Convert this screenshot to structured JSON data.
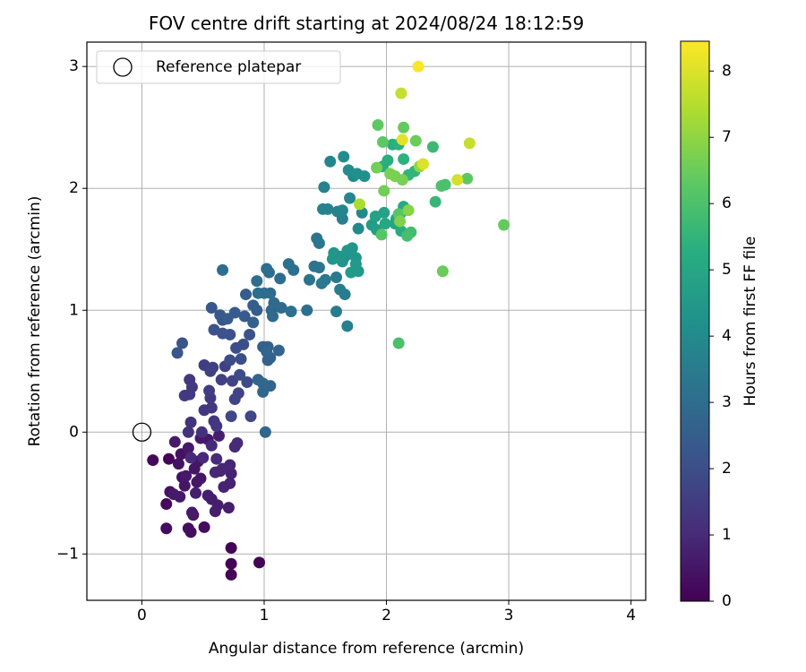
{
  "chart_data": {
    "type": "scatter",
    "title": "FOV centre drift starting at 2024/08/24 18:12:59",
    "xlabel": "Angular distance from reference (arcmin)",
    "ylabel": "Rotation from reference (arcmin)",
    "xlim": [
      -0.45,
      4.12
    ],
    "ylim": [
      -1.38,
      3.2
    ],
    "xticks": [
      "0",
      "1",
      "2",
      "3",
      "4"
    ],
    "yticks": [
      "−1",
      "0",
      "1",
      "2",
      "3"
    ],
    "grid": true,
    "legend": {
      "position": "top-left",
      "label": "Reference platepar"
    },
    "reference_point": {
      "x": 0,
      "y": 0,
      "marker": "open-circle"
    },
    "colorbar": {
      "label": "Hours from first FF file",
      "range": [
        0,
        8.45
      ],
      "ticks": [
        "0",
        "1",
        "2",
        "3",
        "4",
        "5",
        "6",
        "7",
        "8"
      ],
      "colormap": "viridis"
    },
    "series": [
      {
        "points": [
          [
            0.73,
            -0.95,
            0.05
          ],
          [
            0.73,
            -1.08,
            0.05
          ],
          [
            0.73,
            -1.17,
            0.05
          ],
          [
            0.96,
            -1.07,
            0.08
          ],
          [
            0.22,
            -0.22,
            0.1
          ],
          [
            0.09,
            -0.23,
            0.2
          ],
          [
            0.2,
            -0.59,
            0.2
          ],
          [
            0.4,
            -0.82,
            0.3
          ],
          [
            0.38,
            -0.79,
            0.3
          ],
          [
            0.2,
            -0.79,
            0.3
          ],
          [
            0.51,
            -0.78,
            0.3
          ],
          [
            0.33,
            -0.37,
            0.4
          ],
          [
            0.23,
            -0.49,
            0.4
          ],
          [
            0.3,
            -0.26,
            0.4
          ],
          [
            0.32,
            -0.18,
            0.4
          ],
          [
            0.35,
            -0.44,
            0.5
          ],
          [
            0.45,
            -0.41,
            0.5
          ],
          [
            0.43,
            -0.3,
            0.5
          ],
          [
            0.48,
            -0.38,
            0.5
          ],
          [
            0.46,
            -0.24,
            0.5
          ],
          [
            0.27,
            -0.08,
            0.6
          ],
          [
            0.38,
            -0.13,
            0.6
          ],
          [
            0.48,
            -0.05,
            0.6
          ],
          [
            0.54,
            -0.06,
            0.6
          ],
          [
            0.63,
            -0.03,
            0.7
          ],
          [
            0.41,
            -0.66,
            0.6
          ],
          [
            0.42,
            -0.68,
            0.6
          ],
          [
            0.6,
            -0.65,
            0.7
          ],
          [
            0.62,
            -0.6,
            0.7
          ],
          [
            0.71,
            -0.62,
            0.7
          ],
          [
            0.57,
            -0.55,
            0.7
          ],
          [
            0.54,
            -0.52,
            0.7
          ],
          [
            0.44,
            -0.5,
            0.7
          ],
          [
            0.26,
            -0.51,
            0.6
          ],
          [
            0.31,
            -0.53,
            0.6
          ],
          [
            0.36,
            -0.36,
            0.6
          ],
          [
            0.67,
            -0.45,
            0.8
          ],
          [
            0.72,
            -0.42,
            0.8
          ],
          [
            0.73,
            -0.34,
            0.8
          ],
          [
            0.64,
            -0.32,
            0.8
          ],
          [
            0.6,
            -0.33,
            0.9
          ],
          [
            0.66,
            -0.3,
            0.9
          ],
          [
            0.72,
            -0.27,
            0.9
          ],
          [
            0.76,
            -0.12,
            1.0
          ],
          [
            0.78,
            -0.09,
            1.0
          ],
          [
            0.57,
            -0.11,
            1.0
          ],
          [
            0.61,
            -0.22,
            1.0
          ],
          [
            0.5,
            -0.21,
            1.0
          ],
          [
            0.4,
            -0.21,
            1.0
          ],
          [
            0.38,
            0.0,
            1.2
          ],
          [
            0.4,
            0.08,
            1.2
          ],
          [
            0.49,
            0.0,
            1.2
          ],
          [
            0.59,
            0.09,
            1.3
          ],
          [
            0.61,
            0.05,
            1.3
          ],
          [
            0.51,
            0.18,
            1.3
          ],
          [
            0.57,
            0.2,
            1.3
          ],
          [
            0.56,
            0.28,
            1.4
          ],
          [
            0.35,
            0.3,
            1.4
          ],
          [
            0.39,
            0.31,
            1.4
          ],
          [
            0.39,
            0.43,
            1.4
          ],
          [
            0.41,
            0.37,
            1.4
          ],
          [
            0.55,
            0.34,
            1.5
          ],
          [
            0.51,
            0.55,
            1.5
          ],
          [
            0.58,
            0.53,
            1.6
          ],
          [
            0.56,
            0.5,
            1.6
          ],
          [
            0.68,
            0.54,
            1.6
          ],
          [
            0.65,
            0.43,
            1.6
          ],
          [
            0.74,
            0.42,
            1.7
          ],
          [
            0.79,
            0.32,
            1.7
          ],
          [
            0.76,
            0.27,
            1.7
          ],
          [
            0.89,
            0.13,
            1.8
          ],
          [
            0.73,
            0.13,
            1.8
          ],
          [
            0.86,
            0.41,
            1.9
          ],
          [
            0.8,
            0.47,
            1.9
          ],
          [
            0.72,
            0.59,
            1.9
          ],
          [
            0.81,
            0.6,
            2.0
          ],
          [
            0.77,
            0.69,
            2.0
          ],
          [
            0.83,
            0.72,
            2.0
          ],
          [
            0.88,
            0.8,
            2.1
          ],
          [
            0.72,
            0.8,
            2.1
          ],
          [
            0.66,
            0.81,
            2.1
          ],
          [
            0.59,
            0.84,
            2.1
          ],
          [
            0.33,
            0.73,
            2.2
          ],
          [
            0.29,
            0.65,
            2.2
          ],
          [
            0.57,
            1.02,
            2.3
          ],
          [
            0.64,
            0.96,
            2.3
          ],
          [
            0.66,
            0.92,
            2.3
          ],
          [
            0.7,
            0.93,
            2.4
          ],
          [
            0.76,
            0.98,
            2.4
          ],
          [
            0.84,
            0.95,
            2.4
          ],
          [
            0.85,
            1.13,
            2.5
          ],
          [
            0.91,
            1.04,
            2.5
          ],
          [
            0.94,
            1.0,
            2.5
          ],
          [
            0.91,
            0.9,
            2.6
          ],
          [
            0.99,
            0.7,
            2.6
          ],
          [
            1.03,
            0.7,
            2.6
          ],
          [
            1.05,
            0.61,
            2.6
          ],
          [
            1.03,
            0.59,
            2.6
          ],
          [
            1.02,
            0.66,
            2.7
          ],
          [
            1.12,
            0.67,
            2.7
          ],
          [
            1.05,
            0.38,
            2.7
          ],
          [
            0.95,
            0.43,
            2.7
          ],
          [
            0.99,
            0.4,
            2.8
          ],
          [
            0.99,
            0.33,
            2.8
          ],
          [
            1.01,
            0.0,
            2.8
          ],
          [
            1.06,
            1.0,
            2.8
          ],
          [
            1.07,
            0.95,
            2.9
          ],
          [
            1.08,
            1.06,
            2.9
          ],
          [
            1.14,
            1.02,
            2.9
          ],
          [
            1.05,
            1.14,
            2.9
          ],
          [
            1.0,
            1.14,
            3.0
          ],
          [
            1.02,
            1.34,
            3.0
          ],
          [
            1.13,
            1.26,
            3.0
          ],
          [
            1.04,
            1.31,
            3.0
          ],
          [
            0.94,
            1.24,
            3.0
          ],
          [
            0.95,
            1.14,
            3.0
          ],
          [
            0.66,
            1.33,
            3.0
          ],
          [
            1.2,
            1.38,
            3.1
          ],
          [
            1.24,
            1.33,
            3.1
          ],
          [
            1.22,
            0.99,
            3.1
          ],
          [
            1.35,
            1.0,
            3.1
          ],
          [
            1.37,
            1.25,
            3.2
          ],
          [
            1.41,
            1.36,
            3.2
          ],
          [
            1.45,
            1.35,
            3.3
          ],
          [
            1.45,
            1.55,
            3.3
          ],
          [
            1.43,
            1.59,
            3.3
          ],
          [
            1.5,
            1.25,
            3.4
          ],
          [
            1.47,
            1.22,
            3.4
          ],
          [
            1.59,
            1.27,
            3.4
          ],
          [
            1.62,
            1.17,
            3.5
          ],
          [
            1.66,
            1.13,
            3.5
          ],
          [
            1.59,
            0.99,
            3.5
          ],
          [
            1.68,
            0.87,
            3.6
          ],
          [
            1.64,
            1.75,
            3.6
          ],
          [
            1.6,
            1.81,
            3.7
          ],
          [
            1.52,
            1.83,
            3.7
          ],
          [
            1.48,
            1.83,
            3.7
          ],
          [
            1.49,
            2.01,
            3.7
          ],
          [
            1.54,
            2.22,
            3.8
          ],
          [
            1.64,
            1.82,
            3.8
          ],
          [
            1.7,
            1.92,
            3.9
          ],
          [
            1.8,
            1.8,
            4.0
          ],
          [
            1.77,
            1.67,
            4.0
          ],
          [
            1.73,
            2.1,
            4.0
          ],
          [
            1.65,
            2.26,
            4.1
          ],
          [
            1.69,
            2.15,
            4.1
          ],
          [
            1.76,
            2.12,
            4.2
          ],
          [
            1.82,
            2.1,
            4.2
          ],
          [
            1.66,
            1.44,
            4.3
          ],
          [
            1.64,
            1.4,
            4.3
          ],
          [
            1.75,
            1.43,
            4.4
          ],
          [
            1.72,
            1.51,
            4.4
          ],
          [
            1.68,
            1.49,
            4.4
          ],
          [
            1.62,
            1.44,
            4.4
          ],
          [
            1.57,
            1.47,
            4.4
          ],
          [
            1.56,
            1.42,
            4.4
          ],
          [
            1.71,
            1.31,
            4.5
          ],
          [
            1.77,
            1.32,
            4.5
          ],
          [
            1.75,
            1.38,
            4.5
          ],
          [
            1.88,
            1.7,
            4.6
          ],
          [
            1.92,
            1.66,
            4.7
          ],
          [
            1.91,
            1.77,
            4.8
          ],
          [
            1.98,
            1.8,
            4.8
          ],
          [
            2.07,
            1.71,
            4.9
          ],
          [
            2.08,
            1.75,
            5.0
          ],
          [
            1.99,
            1.71,
            5.0
          ],
          [
            2.12,
            1.8,
            5.1
          ],
          [
            2.14,
            1.85,
            5.1
          ],
          [
            2.12,
            1.65,
            5.2
          ],
          [
            1.97,
            2.18,
            5.3
          ],
          [
            2.01,
            2.23,
            5.3
          ],
          [
            2.05,
            2.36,
            5.3
          ],
          [
            2.1,
            2.36,
            5.4
          ],
          [
            2.14,
            2.24,
            5.4
          ],
          [
            2.18,
            2.11,
            5.5
          ],
          [
            2.23,
            2.14,
            5.5
          ],
          [
            2.4,
            1.89,
            5.6
          ],
          [
            2.38,
            2.34,
            5.7
          ],
          [
            2.2,
            1.64,
            5.8
          ],
          [
            2.17,
            1.61,
            5.9
          ],
          [
            2.1,
            0.73,
            6.0
          ],
          [
            2.45,
            2.02,
            6.0
          ],
          [
            2.48,
            2.03,
            6.0
          ],
          [
            2.66,
            2.08,
            6.3
          ],
          [
            1.96,
            1.62,
            6.2
          ],
          [
            2.1,
            1.79,
            6.2
          ],
          [
            1.93,
            2.52,
            6.3
          ],
          [
            1.97,
            2.38,
            6.3
          ],
          [
            2.14,
            2.5,
            6.4
          ],
          [
            2.24,
            2.39,
            6.5
          ],
          [
            2.96,
            1.7,
            6.4
          ],
          [
            2.46,
            1.32,
            6.5
          ],
          [
            1.92,
            2.17,
            6.6
          ],
          [
            1.98,
            1.98,
            6.6
          ],
          [
            2.03,
            2.12,
            6.7
          ],
          [
            2.07,
            2.1,
            6.7
          ],
          [
            2.13,
            2.07,
            6.7
          ],
          [
            2.11,
            1.73,
            6.8
          ],
          [
            2.18,
            1.82,
            6.9
          ],
          [
            2.27,
            2.18,
            7.0
          ],
          [
            1.78,
            1.87,
            7.4
          ],
          [
            2.12,
            2.78,
            7.7
          ],
          [
            2.68,
            2.37,
            7.7
          ],
          [
            2.58,
            2.07,
            7.9
          ],
          [
            2.3,
            2.2,
            8.0
          ],
          [
            2.13,
            2.4,
            8.1
          ],
          [
            2.26,
            3.0,
            8.4
          ]
        ]
      }
    ]
  }
}
